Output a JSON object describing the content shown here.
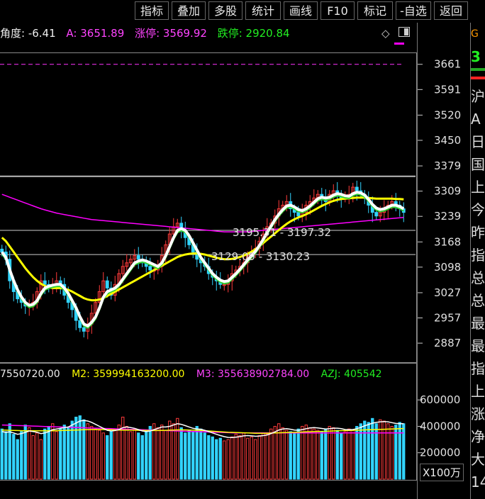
{
  "toolbar": {
    "buttons": [
      "指标",
      "叠加",
      "多股",
      "统计",
      "画线",
      "F10",
      "标记",
      "-自选",
      "返回"
    ]
  },
  "info": {
    "angle": "角度: -6.41",
    "a": "A: 3651.89",
    "up_limit": "涨停: 3569.92",
    "down_limit": "跌停: 2920.84"
  },
  "vol_header": {
    "m1": "7550720.00",
    "m2": "M2: 359994163200.00",
    "m3": "M3: 355638902784.00",
    "azj": "AZJ: 405542"
  },
  "colors": {
    "up": "#ff3b3b",
    "down": "#32d4ff",
    "ma_short": "#ffffff",
    "ma_mid": "#ffff00",
    "ma_long": "#ff00ff",
    "ma_green": "#32d232"
  },
  "annotations": {
    "upper": "3195.31 - 3197.32",
    "lower": "3129.09 - 3130.23"
  },
  "side": {
    "chars": [
      "G",
      "3",
      "",
      "",
      "沪",
      "A",
      "日",
      "国",
      "上",
      "今",
      "昨",
      "指",
      "总",
      "总",
      "最",
      "最",
      "指",
      "上",
      "涨",
      "净",
      "大",
      "14"
    ]
  },
  "unit_label": "X100万",
  "chart_data": [
    {
      "type": "candlestick",
      "ylim": [
        2840,
        3690
      ],
      "y_ticks": [
        3661,
        3591,
        3520,
        3450,
        3379,
        3309,
        3239,
        3168,
        3098,
        3027,
        2957,
        2887
      ],
      "reference_lines": [
        3661,
        3350,
        3200,
        3133
      ],
      "close": [
        3140,
        3120,
        3060,
        3030,
        3010,
        3000,
        2990,
        2990,
        3000,
        3030,
        3060,
        3050,
        3040,
        3050,
        3060,
        3050,
        3020,
        3000,
        2980,
        2950,
        2930,
        2920,
        2940,
        2970,
        3000,
        3030,
        3060,
        3040,
        3020,
        3050,
        3080,
        3100,
        3110,
        3120,
        3130,
        3120,
        3110,
        3100,
        3090,
        3090,
        3100,
        3130,
        3160,
        3190,
        3210,
        3220,
        3200,
        3180,
        3160,
        3140,
        3120,
        3110,
        3100,
        3080,
        3070,
        3060,
        3050,
        3050,
        3060,
        3080,
        3090,
        3100,
        3110,
        3130,
        3140,
        3150,
        3170,
        3190,
        3210,
        3220,
        3240,
        3260,
        3270,
        3280,
        3260,
        3250,
        3240,
        3250,
        3270,
        3280,
        3290,
        3300,
        3290,
        3280,
        3300,
        3310,
        3300,
        3290,
        3290,
        3300,
        3320,
        3310,
        3300,
        3290,
        3270,
        3250,
        3240,
        3250,
        3260,
        3270,
        3280,
        3270,
        3260,
        3250
      ],
      "ma_short": [
        3140,
        3125,
        3090,
        3060,
        3035,
        3015,
        3000,
        2992,
        2995,
        3005,
        3025,
        3040,
        3045,
        3048,
        3050,
        3050,
        3040,
        3025,
        3005,
        2985,
        2960,
        2940,
        2935,
        2945,
        2960,
        2985,
        3015,
        3030,
        3035,
        3040,
        3050,
        3065,
        3080,
        3095,
        3110,
        3115,
        3118,
        3115,
        3110,
        3105,
        3100,
        3110,
        3130,
        3155,
        3180,
        3200,
        3205,
        3200,
        3185,
        3165,
        3145,
        3125,
        3110,
        3095,
        3080,
        3070,
        3062,
        3058,
        3060,
        3070,
        3080,
        3092,
        3105,
        3118,
        3130,
        3142,
        3158,
        3175,
        3195,
        3212,
        3230,
        3245,
        3258,
        3268,
        3270,
        3265,
        3258,
        3255,
        3260,
        3268,
        3278,
        3288,
        3292,
        3290,
        3292,
        3298,
        3302,
        3300,
        3296,
        3295,
        3302,
        3306,
        3304,
        3298,
        3286,
        3272,
        3262,
        3258,
        3260,
        3265,
        3270,
        3270,
        3266,
        3260
      ],
      "ma_mid": [
        3180,
        3170,
        3155,
        3140,
        3125,
        3110,
        3095,
        3082,
        3070,
        3060,
        3052,
        3046,
        3042,
        3040,
        3040,
        3040,
        3038,
        3035,
        3030,
        3024,
        3018,
        3012,
        3008,
        3006,
        3006,
        3008,
        3012,
        3018,
        3024,
        3030,
        3036,
        3042,
        3048,
        3054,
        3060,
        3066,
        3072,
        3078,
        3084,
        3090,
        3096,
        3102,
        3108,
        3114,
        3120,
        3126,
        3130,
        3133,
        3135,
        3136,
        3136,
        3135,
        3133,
        3130,
        3127,
        3124,
        3122,
        3120,
        3120,
        3121,
        3123,
        3126,
        3130,
        3135,
        3141,
        3148,
        3156,
        3165,
        3174,
        3183,
        3192,
        3201,
        3210,
        3218,
        3225,
        3231,
        3236,
        3240,
        3245,
        3250,
        3256,
        3262,
        3268,
        3273,
        3278,
        3282,
        3285,
        3287,
        3288,
        3289,
        3290,
        3291,
        3291,
        3291,
        3290,
        3289,
        3288,
        3288,
        3288,
        3288,
        3288,
        3287,
        3287,
        3286
      ],
      "ma_long": [
        3300,
        3296,
        3292,
        3288,
        3284,
        3280,
        3276,
        3272,
        3268,
        3264,
        3260,
        3257,
        3254,
        3251,
        3248,
        3246,
        3244,
        3242,
        3240,
        3238,
        3236,
        3234,
        3232,
        3230,
        3229,
        3228,
        3227,
        3226,
        3225,
        3224,
        3223,
        3222,
        3221,
        3220,
        3219,
        3218,
        3217,
        3216,
        3215,
        3214,
        3213,
        3212,
        3211,
        3210,
        3209,
        3208,
        3207,
        3206,
        3205,
        3204,
        3203,
        3202,
        3201,
        3200,
        3199,
        3198,
        3197,
        3196,
        3196,
        3196,
        3196,
        3196,
        3196,
        3196,
        3197,
        3198,
        3199,
        3200,
        3201,
        3202,
        3203,
        3204,
        3205,
        3206,
        3207,
        3208,
        3209,
        3210,
        3211,
        3212,
        3213,
        3214,
        3215,
        3216,
        3217,
        3218,
        3219,
        3220,
        3221,
        3222,
        3223,
        3224,
        3225,
        3226,
        3227,
        3228,
        3229,
        3230,
        3231,
        3232,
        3233,
        3234,
        3235,
        3236
      ]
    },
    {
      "type": "bar",
      "ylim": [
        0,
        730000
      ],
      "y_ticks": [
        600000,
        400000,
        200000
      ],
      "values": [
        380000,
        360000,
        420000,
        340000,
        300000,
        360000,
        410000,
        390000,
        330000,
        350000,
        300000,
        380000,
        400000,
        420000,
        360000,
        380000,
        410000,
        390000,
        440000,
        470000,
        480000,
        450000,
        420000,
        400000,
        380000,
        370000,
        350000,
        330000,
        360000,
        380000,
        410000,
        470000,
        400000,
        360000,
        380000,
        350000,
        330000,
        360000,
        400000,
        420000,
        390000,
        410000,
        370000,
        440000,
        420000,
        460000,
        390000,
        350000,
        370000,
        360000,
        400000,
        380000,
        350000,
        330000,
        320000,
        300000,
        310000,
        290000,
        300000,
        320000,
        340000,
        330000,
        350000,
        310000,
        320000,
        300000,
        330000,
        350000,
        340000,
        380000,
        400000,
        420000,
        390000,
        370000,
        360000,
        350000,
        380000,
        400000,
        410000,
        390000,
        380000,
        370000,
        360000,
        380000,
        400000,
        390000,
        370000,
        350000,
        360000,
        380000,
        370000,
        400000,
        420000,
        440000,
        430000,
        460000,
        420000,
        450000,
        440000,
        420000,
        400000,
        410000,
        430000,
        420000
      ],
      "ma_white": [
        360000,
        355000,
        358000,
        350000,
        340000,
        345000,
        355000,
        365000,
        360000,
        355000,
        345000,
        350000,
        360000,
        375000,
        380000,
        385000,
        390000,
        395000,
        410000,
        425000,
        440000,
        445000,
        440000,
        430000,
        415000,
        400000,
        385000,
        370000,
        365000,
        368000,
        375000,
        390000,
        395000,
        390000,
        385000,
        375000,
        365000,
        360000,
        365000,
        375000,
        385000,
        395000,
        395000,
        400000,
        410000,
        420000,
        415000,
        405000,
        395000,
        385000,
        380000,
        378000,
        370000,
        360000,
        350000,
        340000,
        330000,
        322000,
        316000,
        315000,
        318000,
        322000,
        328000,
        330000,
        328000,
        325000,
        326000,
        330000,
        335000,
        345000,
        358000,
        372000,
        380000,
        382000,
        378000,
        372000,
        370000,
        375000,
        382000,
        388000,
        390000,
        388000,
        384000,
        380000,
        382000,
        386000,
        386000,
        382000,
        376000,
        374000,
        376000,
        382000,
        392000,
        404000,
        414000,
        424000,
        430000,
        434000,
        436000,
        434000,
        428000,
        422000,
        420000,
        420000
      ],
      "ma_yellow": [
        372000,
        371000,
        370000,
        369000,
        368000,
        367000,
        366000,
        366000,
        366000,
        366000,
        366000,
        366000,
        366000,
        366000,
        367000,
        368000,
        369000,
        370000,
        371000,
        372000,
        373000,
        374000,
        375000,
        376000,
        376000,
        376000,
        376000,
        375000,
        374000,
        373000,
        372000,
        372000,
        372000,
        372000,
        371000,
        370000,
        369000,
        368000,
        368000,
        368000,
        368000,
        369000,
        370000,
        371000,
        372000,
        373000,
        373000,
        373000,
        372000,
        371000,
        370000,
        369000,
        367000,
        365000,
        363000,
        361000,
        359000,
        357000,
        355000,
        354000,
        353000,
        352000,
        351000,
        350000,
        349000,
        348000,
        348000,
        348000,
        348000,
        349000,
        350000,
        351000,
        352000,
        353000,
        354000,
        355000,
        356000,
        357000,
        358000,
        359000,
        360000,
        361000,
        362000,
        363000,
        364000,
        365000,
        366000,
        367000,
        368000,
        369000,
        370000,
        371000,
        372000,
        373000,
        374000,
        375000,
        376000,
        377000,
        378000,
        379000,
        380000,
        381000,
        382000,
        383000
      ],
      "ma_magenta": [
        410000,
        409000,
        408000,
        407000,
        406000,
        405000,
        404000,
        403000,
        402000,
        401000,
        400000,
        399000,
        398000,
        397000,
        396000,
        395000,
        394000,
        393000,
        392000,
        391000,
        390000,
        389000,
        388000,
        387000,
        386000,
        385000,
        384000,
        383000,
        382000,
        381000,
        380000,
        379000,
        378000,
        377000,
        376000,
        375000,
        374000,
        373000,
        372000,
        371000,
        370000,
        369000,
        368000,
        367000,
        366000,
        365000,
        364000,
        363000,
        362000,
        361000,
        360000,
        359000,
        358000,
        357000,
        356000,
        355000,
        354000,
        353000,
        352000,
        351000,
        350000,
        350000,
        350000,
        350000,
        350000,
        350000,
        350000,
        350000,
        350000,
        350000,
        350000,
        350000,
        350000,
        350000,
        350000,
        350000,
        350000,
        350000,
        350000,
        350000,
        350000,
        350000,
        350000,
        350000,
        350000,
        350000,
        350000,
        350000,
        350000,
        350000,
        350000,
        350000,
        350000,
        350000,
        350000,
        350000,
        350000,
        350000,
        350000,
        350000,
        350000,
        350000,
        350000,
        350000
      ]
    }
  ]
}
